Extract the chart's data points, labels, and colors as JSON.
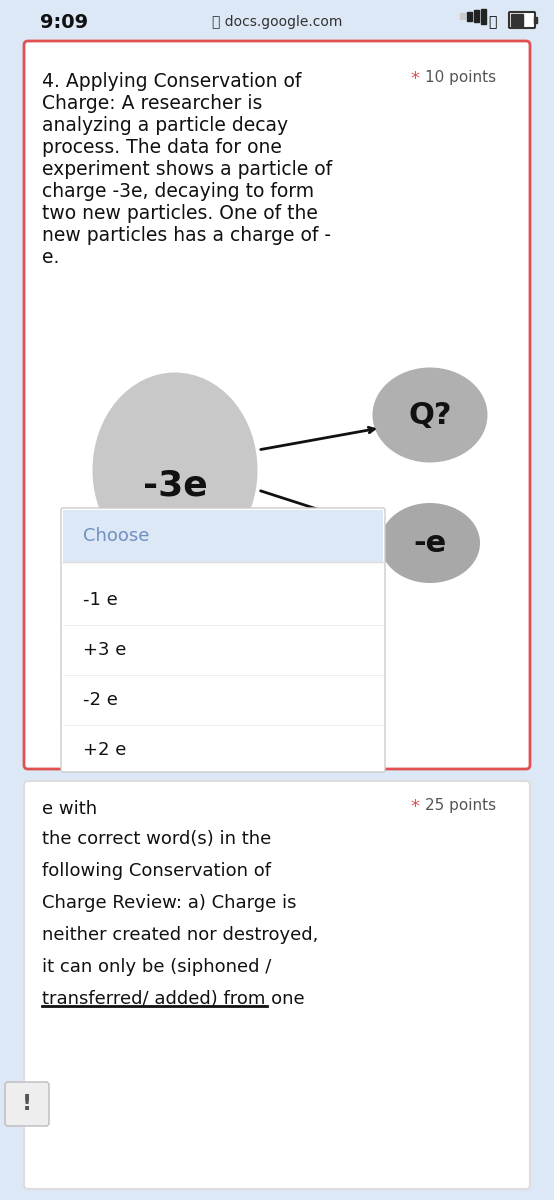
{
  "bg_color": "#dce8f5",
  "status_bar_time": "9:09",
  "status_bar_url": "docs.google.com",
  "card1_bg": "#ffffff",
  "card1_border": "#e05050",
  "card1_title": "4. Applying Conservation of\nCharge: A researcher is\nanalyzing a particle decay\nprocess. The data for one\nexperiment shows a particle of\ncharge -3e, decaying to form\ntwo new particles. One of the\nnew particles has a charge of -\ne.",
  "card1_points_star": "*",
  "card1_points": "10 points",
  "particle_big_label": "-3e",
  "particle_q_label": "Q?",
  "particle_e_label": "-e",
  "particle_color_big": "#c8c8c8",
  "particle_color_q": "#b0b0b0",
  "particle_color_e": "#a8a8a8",
  "dropdown_bg": "#ffffff",
  "dropdown_header_bg": "#dce8f5",
  "dropdown_header_text": "Choose",
  "dropdown_header_text_color": "#7090c0",
  "dropdown_items": [
    "-1 e",
    "+3 e",
    "-2 e",
    "+2 e"
  ],
  "card2_bg": "#ffffff",
  "card2_border": "#ffffff",
  "card2_points_star": "*",
  "card2_points": "25 points",
  "card2_text_partial": "e with",
  "card2_body": "the correct word(s) in the\nfollowing Conservation of\nCharge Review: a) Charge is\nneither created nor destroyed,\nit can only be (siphoned /\ntransferred/ added) from one",
  "strikethrough_text": "transferred/ added",
  "icon_color": "#555555"
}
